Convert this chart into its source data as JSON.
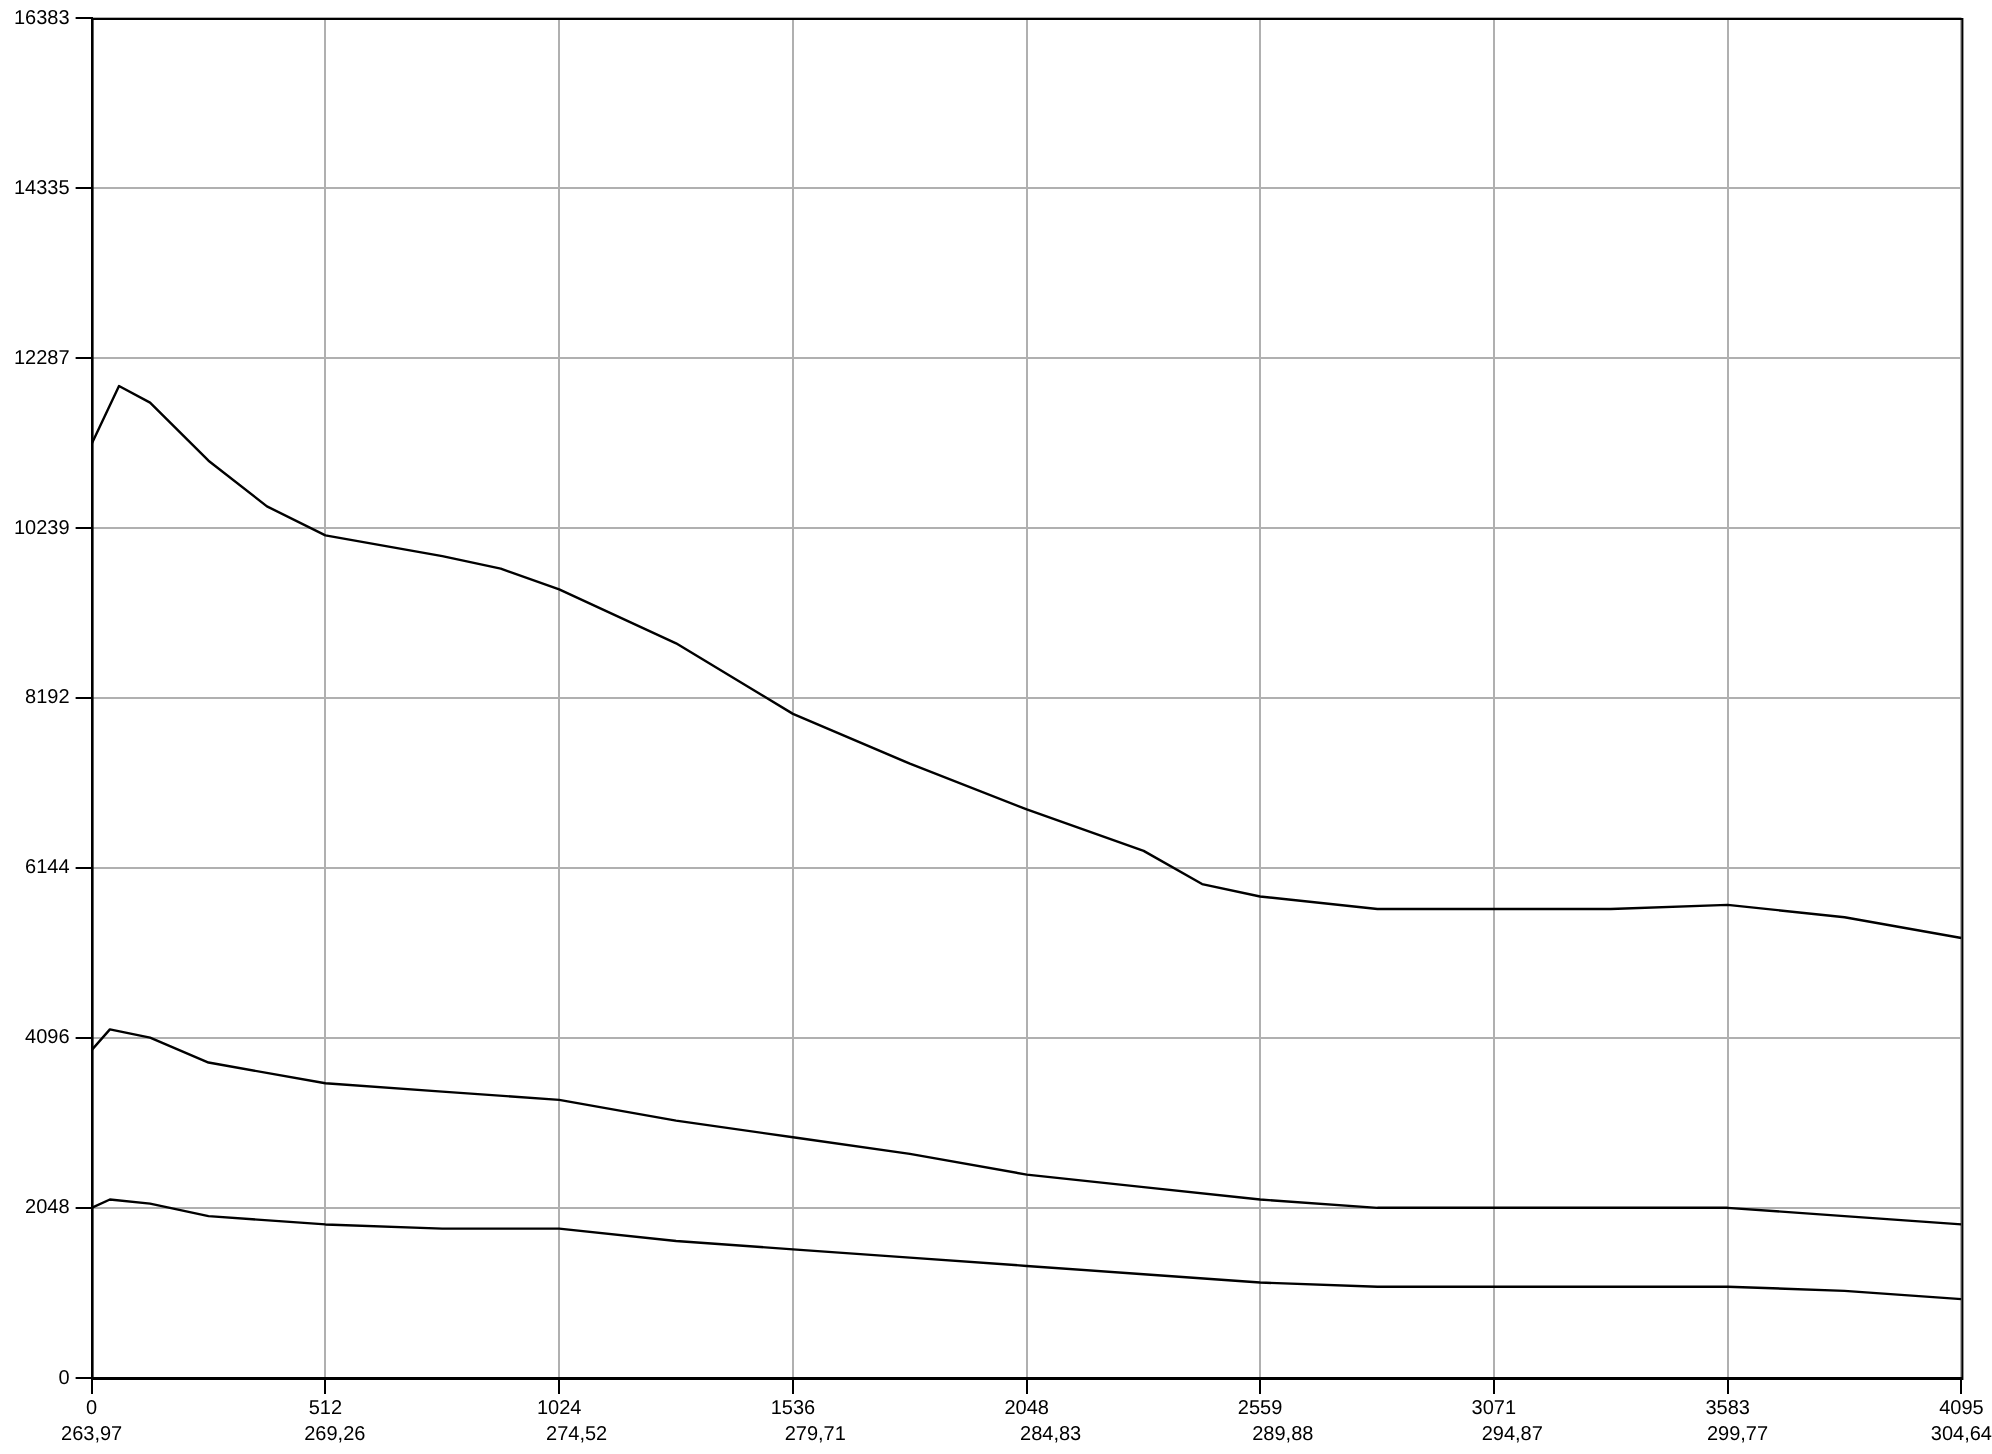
{
  "chart_data": {
    "type": "line",
    "xlim": [
      0,
      4095
    ],
    "ylim": [
      0,
      16383
    ],
    "xticks": [
      0,
      512,
      1024,
      1536,
      2048,
      2559,
      3071,
      3583,
      4095
    ],
    "yticks": [
      0,
      2048,
      4096,
      6144,
      8192,
      10239,
      12287,
      14335,
      16383
    ],
    "x2lim": [
      263.97,
      304.64
    ],
    "x2ticks": [
      {
        "value": 263.97,
        "label": "263,97"
      },
      {
        "value": 269.26,
        "label": "269,26"
      },
      {
        "value": 274.52,
        "label": "274,52"
      },
      {
        "value": 279.71,
        "label": "279,71"
      },
      {
        "value": 284.83,
        "label": "284,83"
      },
      {
        "value": 289.88,
        "label": "289,88"
      },
      {
        "value": 294.87,
        "label": "294,87"
      },
      {
        "value": 299.77,
        "label": "299,77"
      },
      {
        "value": 304.64,
        "label": "304,64"
      }
    ],
    "grid": true,
    "legend": false,
    "marker": "none",
    "line_style": "solid",
    "series": [
      {
        "color": "#000000",
        "x": [
          0,
          60,
          128,
          256,
          384,
          512,
          768,
          896,
          1024,
          1280,
          1536,
          1792,
          2048,
          2304,
          2432,
          2559,
          2816,
          3071,
          3327,
          3583,
          3839,
          4095
        ],
        "values": [
          11250,
          11950,
          11750,
          11050,
          10500,
          10150,
          9900,
          9750,
          9500,
          8850,
          8000,
          7400,
          6850,
          6350,
          5950,
          5800,
          5650,
          5650,
          5650,
          5700,
          5550,
          5300
        ]
      },
      {
        "color": "#000000",
        "x": [
          0,
          40,
          128,
          256,
          512,
          768,
          1024,
          1280,
          1536,
          1792,
          2048,
          2304,
          2559,
          2816,
          3071,
          3327,
          3583,
          3839,
          4095
        ],
        "values": [
          3950,
          4200,
          4100,
          3800,
          3550,
          3450,
          3350,
          3100,
          2900,
          2700,
          2450,
          2300,
          2150,
          2050,
          2050,
          2050,
          2050,
          1950,
          1850
        ]
      },
      {
        "color": "#000000",
        "x": [
          0,
          40,
          128,
          256,
          512,
          768,
          1024,
          1280,
          1536,
          1792,
          2048,
          2304,
          2559,
          2816,
          3071,
          3327,
          3583,
          3839,
          4095
        ],
        "values": [
          2050,
          2150,
          2100,
          1950,
          1850,
          1800,
          1800,
          1650,
          1550,
          1450,
          1350,
          1250,
          1150,
          1100,
          1100,
          1100,
          1100,
          1050,
          950
        ]
      }
    ]
  }
}
